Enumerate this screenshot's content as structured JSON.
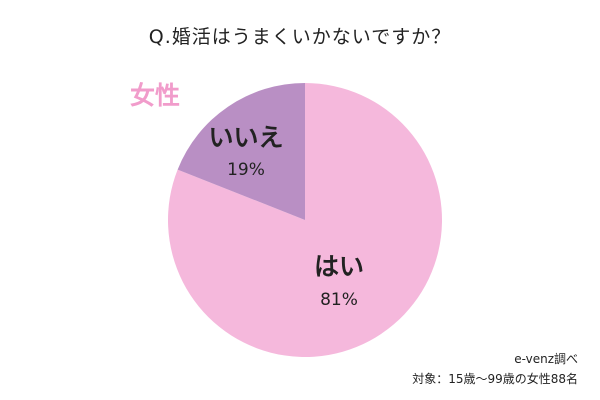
{
  "title": "Q.婚活はうまくいかないですか？",
  "group_label": "女性",
  "source": "e-venz調べ",
  "note": "対象：15歳～99歳の女性88名",
  "colors": {
    "yes": "#f5b8dc",
    "no": "#b98fc4",
    "label_group": "#f19ccb"
  },
  "chart_data": {
    "type": "pie",
    "title": "Q.婚活はうまくいかないですか？",
    "series": [
      {
        "name": "女性",
        "slices": [
          {
            "label": "はい",
            "value": 81,
            "display": "81%"
          },
          {
            "label": "いいえ",
            "value": 19,
            "display": "19%"
          }
        ]
      }
    ]
  }
}
